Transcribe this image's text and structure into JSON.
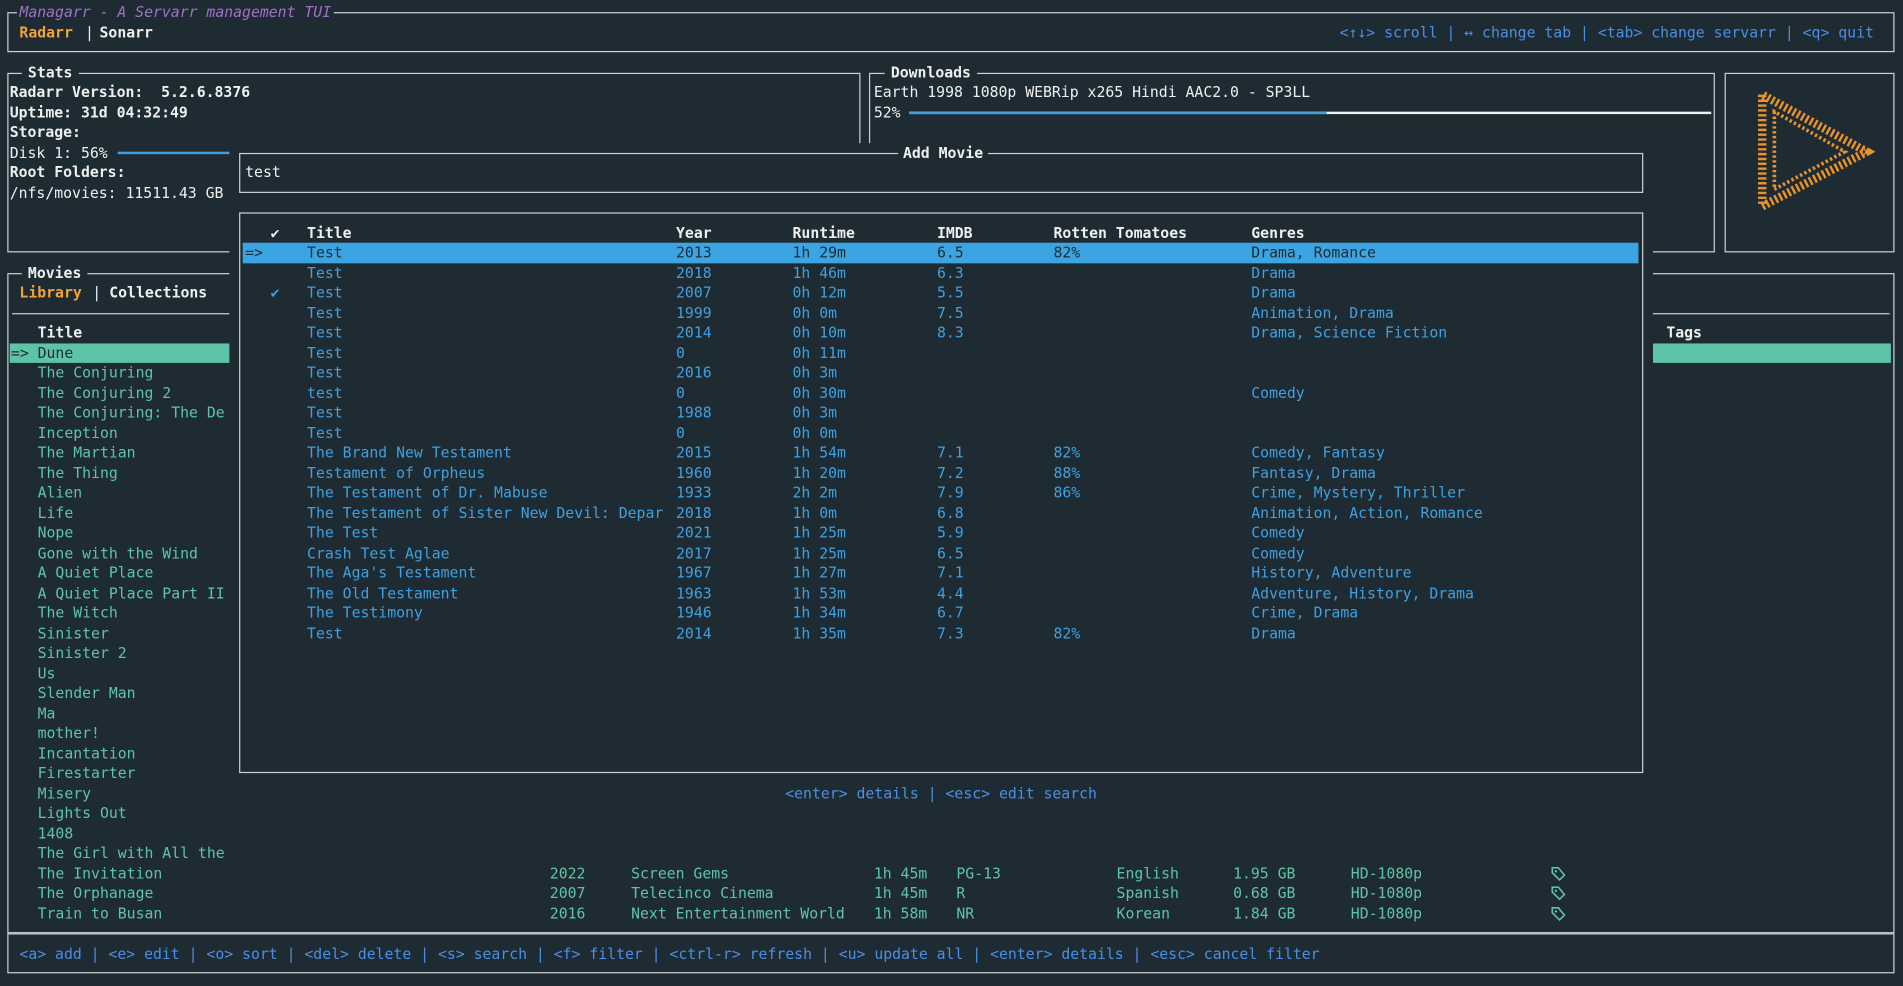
{
  "header": {
    "title": "Managarr - A Servarr management TUI",
    "tabs": [
      "Radarr",
      "Sonarr"
    ],
    "separator": "|",
    "help": "<↑↓> scroll | ↔ change tab | <tab> change servarr | <q> quit"
  },
  "stats": {
    "title": "Stats",
    "lines": [
      "Radarr Version:  5.2.6.8376",
      "Uptime: 31d 04:32:49",
      "Storage:"
    ],
    "disk": {
      "label": "Disk 1: 56%",
      "percent": 56
    },
    "root_title": "Root Folders:",
    "root": "/nfs/movies: 11511.43 GB"
  },
  "downloads": {
    "title": "Downloads",
    "items": [
      {
        "name": "Earth 1998 1080p WEBRip x265 Hindi AAC2.0 - SP3LL",
        "label": "52%",
        "percent": 52
      }
    ]
  },
  "movies": {
    "title": "Movies",
    "tabs": [
      "Library",
      "Collections"
    ],
    "separator": "|",
    "selected_marker": "=>",
    "columns": {
      "title": "Title",
      "tags": "Tags"
    },
    "rows": [
      {
        "title": "Dune"
      },
      {
        "title": "The Conjuring"
      },
      {
        "title": "The Conjuring 2"
      },
      {
        "title": "The Conjuring: The De"
      },
      {
        "title": "Inception"
      },
      {
        "title": "The Martian"
      },
      {
        "title": "The Thing"
      },
      {
        "title": "Alien"
      },
      {
        "title": "Life"
      },
      {
        "title": "Nope"
      },
      {
        "title": "Gone with the Wind"
      },
      {
        "title": "A Quiet Place"
      },
      {
        "title": "A Quiet Place Part II"
      },
      {
        "title": "The Witch"
      },
      {
        "title": "Sinister"
      },
      {
        "title": "Sinister 2"
      },
      {
        "title": "Us"
      },
      {
        "title": "Slender Man"
      },
      {
        "title": "Ma"
      },
      {
        "title": "mother!"
      },
      {
        "title": "Incantation"
      },
      {
        "title": "Firestarter"
      },
      {
        "title": "Misery"
      },
      {
        "title": "Lights Out"
      },
      {
        "title": "1408"
      },
      {
        "title": "The Girl with All the"
      },
      {
        "title": "The Invitation",
        "year": "2022",
        "studio": "Screen Gems",
        "runtime": "1h 45m",
        "rating": "PG-13",
        "language": "English",
        "size": "1.95 GB",
        "quality": "HD-1080p"
      },
      {
        "title": "The Orphanage",
        "year": "2007",
        "studio": "Telecinco Cinema",
        "runtime": "1h 45m",
        "rating": "R",
        "language": "Spanish",
        "size": "0.68 GB",
        "quality": "HD-1080p"
      },
      {
        "title": "Train to Busan",
        "year": "2016",
        "studio": "Next Entertainment World",
        "runtime": "1h 58m",
        "rating": "NR",
        "language": "Korean",
        "size": "1.84 GB",
        "quality": "HD-1080p"
      }
    ]
  },
  "add_movie": {
    "title": "Add Movie",
    "query": "test",
    "selected_marker": "=>",
    "columns": {
      "check": "✔",
      "title": "Title",
      "year": "Year",
      "runtime": "Runtime",
      "imdb": "IMDB",
      "rt": "Rotten Tomatoes",
      "genres": "Genres"
    },
    "rows": [
      {
        "title": "Test",
        "year": "2013",
        "runtime": "1h 29m",
        "imdb": "6.5",
        "rt": "82%",
        "genres": "Drama, Romance"
      },
      {
        "title": "Test",
        "year": "2018",
        "runtime": "1h 46m",
        "imdb": "6.3",
        "genres": "Drama"
      },
      {
        "check": "✔",
        "title": "Test",
        "year": "2007",
        "runtime": "0h 12m",
        "imdb": "5.5",
        "genres": "Drama"
      },
      {
        "title": "Test",
        "year": "1999",
        "runtime": "0h 0m",
        "imdb": "7.5",
        "genres": "Animation, Drama"
      },
      {
        "title": "Test",
        "year": "2014",
        "runtime": "0h 10m",
        "imdb": "8.3",
        "genres": "Drama, Science Fiction"
      },
      {
        "title": "Test",
        "year": "0",
        "runtime": "0h 11m"
      },
      {
        "title": "Test",
        "year": "2016",
        "runtime": "0h 3m"
      },
      {
        "title": "test",
        "year": "0",
        "runtime": "0h 30m",
        "genres": "Comedy"
      },
      {
        "title": "Test",
        "year": "1988",
        "runtime": "0h 3m"
      },
      {
        "title": "Test",
        "year": "0",
        "runtime": "0h 0m"
      },
      {
        "title": "The Brand New Testament",
        "year": "2015",
        "runtime": "1h 54m",
        "imdb": "7.1",
        "rt": "82%",
        "genres": "Comedy, Fantasy"
      },
      {
        "title": "Testament of Orpheus",
        "year": "1960",
        "runtime": "1h 20m",
        "imdb": "7.2",
        "rt": "88%",
        "genres": "Fantasy, Drama"
      },
      {
        "title": "The Testament of Dr. Mabuse",
        "year": "1933",
        "runtime": "2h 2m",
        "imdb": "7.9",
        "rt": "86%",
        "genres": "Crime, Mystery, Thriller"
      },
      {
        "title": "The Testament of Sister New Devil: Depar",
        "year": "2018",
        "runtime": "1h 0m",
        "imdb": "6.8",
        "genres": "Animation, Action, Romance"
      },
      {
        "title": "The Test",
        "year": "2021",
        "runtime": "1h 25m",
        "imdb": "5.9",
        "genres": "Comedy"
      },
      {
        "title": "Crash Test Aglae",
        "year": "2017",
        "runtime": "1h 25m",
        "imdb": "6.5",
        "genres": "Comedy"
      },
      {
        "title": "The Aga's Testament",
        "year": "1967",
        "runtime": "1h 27m",
        "imdb": "7.1",
        "genres": "History, Adventure"
      },
      {
        "title": "The Old Testament",
        "year": "1963",
        "runtime": "1h 53m",
        "imdb": "4.4",
        "genres": "Adventure, History, Drama"
      },
      {
        "title": "The Testimony",
        "year": "1946",
        "runtime": "1h 34m",
        "imdb": "6.7",
        "genres": "Crime, Drama"
      },
      {
        "title": "Test",
        "year": "2014",
        "runtime": "1h 35m",
        "imdb": "7.3",
        "rt": "82%",
        "genres": "Drama"
      }
    ],
    "help": "<enter> details | <esc> edit search"
  },
  "footer": {
    "help": "<a> add | <e> edit | <o> sort | <del> delete | <s> search | <f> filter | <ctrl-r> refresh | <u> update all | <enter> details | <esc> cancel filter"
  }
}
